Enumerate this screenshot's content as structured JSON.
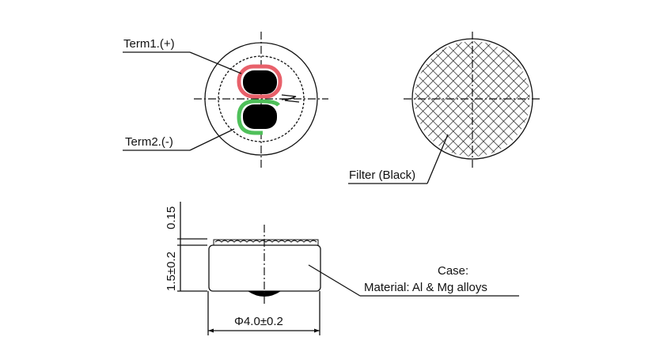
{
  "labels": {
    "term1": "Term1.(+)",
    "term2": "Term2.(-)",
    "filter": "Filter (Black)",
    "case_title": "Case:",
    "case_material": "Material: Al & Mg alloys",
    "dim_filter_thickness": "0.15",
    "dim_height": "1.5±0.2",
    "dim_diameter": "Φ4.0±0.2"
  },
  "colors": {
    "term1_highlight": "#e8606a",
    "term2_highlight": "#4fc05a",
    "line": "#111111"
  }
}
